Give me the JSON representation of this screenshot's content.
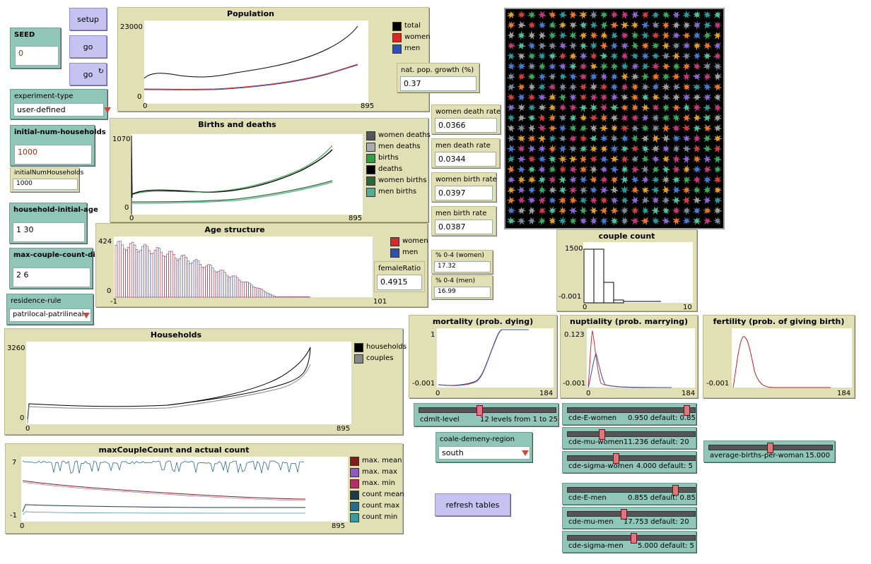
{
  "buttons": {
    "setup": "setup",
    "go_once": "go",
    "go_forever": "go",
    "refresh": "refresh tables"
  },
  "seed": {
    "label": "SEED",
    "value": "0"
  },
  "experiment_type": {
    "label": "experiment-type",
    "value": "user-defined"
  },
  "initial_num_households": {
    "label": "initial-num-households",
    "value": "1000"
  },
  "initialNumHouseholds_monitor": {
    "label": "initialNumHouseholds",
    "value": "1000"
  },
  "household_initial_age": {
    "label": "household-initial-age",
    "value": "1 30"
  },
  "max_couple_count": {
    "label": "max-couple-count-di...",
    "value": "2 6"
  },
  "residence_rule": {
    "label": "residence-rule",
    "value": "patrilocal-patrilineal"
  },
  "monitors": {
    "nat_pop_growth": {
      "label": "nat. pop. growth (%)",
      "value": "0.37"
    },
    "women_death_rate": {
      "label": "women death rate",
      "value": "0.0366"
    },
    "men_death_rate": {
      "label": "men death rate",
      "value": "0.0344"
    },
    "women_birth_rate": {
      "label": "women birth rate",
      "value": "0.0397"
    },
    "men_birth_rate": {
      "label": "men birth rate",
      "value": "0.0387"
    },
    "female_ratio": {
      "label": "femaleRatio",
      "value": "0.4915"
    },
    "pct04_women": {
      "label": "% 0-4 (women)",
      "value": "17.32"
    },
    "pct04_men": {
      "label": "% 0-4 (men)",
      "value": "16.99"
    }
  },
  "population_plot": {
    "title": "Population",
    "ymax": "23000",
    "ymin": "0",
    "xmin": "0",
    "xmax": "895",
    "legend": [
      {
        "name": "total",
        "color": "#000000"
      },
      {
        "name": "women",
        "color": "#d62a2a"
      },
      {
        "name": "men",
        "color": "#3050b0"
      }
    ]
  },
  "births_plot": {
    "title": "Births and deaths",
    "ymax": "1070",
    "ymin": "0",
    "xmin": "0",
    "xmax": "895",
    "legend": [
      {
        "name": "women deaths",
        "color": "#555555"
      },
      {
        "name": "men deaths",
        "color": "#aaaaaa"
      },
      {
        "name": "births",
        "color": "#2ea040"
      },
      {
        "name": "deaths",
        "color": "#000000"
      },
      {
        "name": "women births",
        "color": "#2a6a30"
      },
      {
        "name": "men births",
        "color": "#50b090"
      }
    ]
  },
  "age_plot": {
    "title": "Age structure",
    "ymax": "424",
    "ymin": "0",
    "xmin": "-1",
    "xmax": "101",
    "legend": [
      {
        "name": "women",
        "color": "#d62a2a"
      },
      {
        "name": "men",
        "color": "#3050b0"
      }
    ]
  },
  "households_plot": {
    "title": "Households",
    "ymax": "3260",
    "ymin": "0",
    "xmin": "0",
    "xmax": "895",
    "legend": [
      {
        "name": "households",
        "color": "#000000"
      },
      {
        "name": "couples",
        "color": "#888888"
      }
    ]
  },
  "maxcouple_plot": {
    "title": "maxCoupleCount and actual count",
    "ymax": "7",
    "ymin": "-1",
    "xmin": "0",
    "xmax": "895",
    "legend": [
      {
        "name": "max. mean",
        "color": "#7a1e1e"
      },
      {
        "name": "max. max",
        "color": "#8a5cc0"
      },
      {
        "name": "max. min",
        "color": "#b0306a"
      },
      {
        "name": "count mean",
        "color": "#1e3a48"
      },
      {
        "name": "count max",
        "color": "#2a6a8a"
      },
      {
        "name": "count min",
        "color": "#3a9aa0"
      }
    ]
  },
  "couple_count_plot": {
    "title": "couple count",
    "ymax": "1500",
    "ymin": "-0.001",
    "xmin": "0",
    "xmax": "10"
  },
  "mortality_plot": {
    "title": "mortality (prob. dying)",
    "ymax": "1",
    "ymin": "-0.001",
    "xmin": "0",
    "xmax": "184"
  },
  "nuptiality_plot": {
    "title": "nuptiality (prob. marrying)",
    "ymax": "0.123",
    "ymin": "-0.001",
    "xmin": "0",
    "xmax": "184"
  },
  "fertility_plot": {
    "title": "fertility (prob. of giving birth)",
    "ymin": "-0.001",
    "xmax": "184"
  },
  "sliders": {
    "cdmlt_level": {
      "label": "cdmlt-level",
      "value": "12 levels from 1 to 25"
    },
    "cde_E_women": {
      "label": "cde-E-women",
      "value": "0.950 default: 0.85"
    },
    "cde_mu_women": {
      "label": "cde-mu-women",
      "value": "11.236 default: 20"
    },
    "cde_sigma_women": {
      "label": "cde-sigma-women",
      "value": "4.000 default: 5"
    },
    "avg_births": {
      "label": "average-births-per-woman",
      "value": "15.000"
    },
    "cde_E_men": {
      "label": "cde-E-men",
      "value": "0.855 default: 0.85"
    },
    "cde_mu_men": {
      "label": "cde-mu-men",
      "value": "17.753 default: 20"
    },
    "cde_sigma_men": {
      "label": "cde-sigma-men",
      "value": "5.000 default: 5"
    }
  },
  "coale_region": {
    "label": "coale-demeny-region",
    "value": "south"
  }
}
